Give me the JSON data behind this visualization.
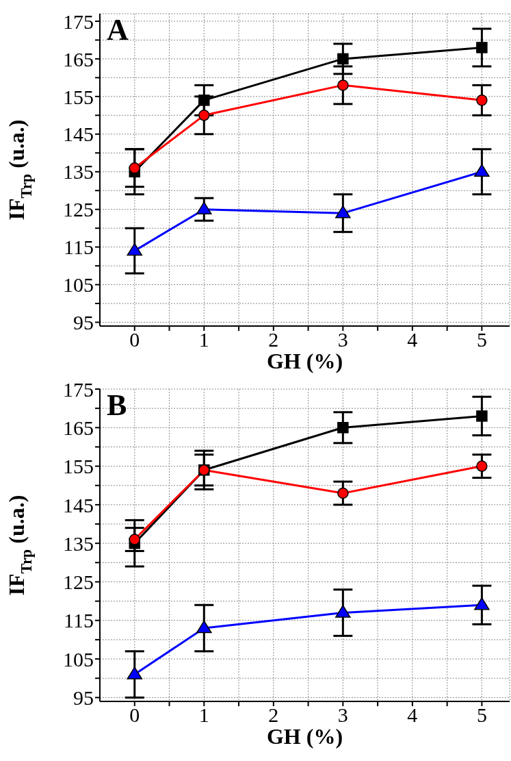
{
  "chart_data": [
    {
      "type": "line",
      "annotations": [
        "A"
      ],
      "xlabel": "GH (%)",
      "ylabel": "IF$_{Trp}$ (u.a.)",
      "x": [
        0,
        1,
        3,
        5
      ],
      "xlim": [
        -0.5,
        5.4
      ],
      "xticks": [
        0,
        {
          "value": 0.5,
          "label": null
        },
        1,
        {
          "value": 1.5,
          "label": null
        },
        2,
        {
          "value": 2.5,
          "label": null
        },
        3,
        {
          "value": 3.5,
          "label": null
        },
        4,
        {
          "value": 4.5,
          "label": null
        },
        5
      ],
      "ylim": [
        94,
        177
      ],
      "yticks": [
        95,
        {
          "value": 100,
          "label": null
        },
        105,
        {
          "value": 110,
          "label": null
        },
        115,
        {
          "value": 120,
          "label": null
        },
        125,
        {
          "value": 130,
          "label": null
        },
        135,
        {
          "value": 140,
          "label": null
        },
        145,
        {
          "value": 150,
          "label": null
        },
        155,
        {
          "value": 160,
          "label": null
        },
        165,
        {
          "value": 170,
          "label": null
        },
        175
      ],
      "grid": true,
      "line_style": "solid",
      "series": [
        {
          "color": "#000000",
          "marker": "square",
          "values": [
            135,
            154,
            165,
            168
          ],
          "errors": [
            6,
            4,
            4,
            5
          ]
        },
        {
          "color": "#ff0000",
          "marker": "circle",
          "values": [
            136,
            150,
            158,
            154
          ],
          "errors": [
            5,
            5,
            5,
            4
          ]
        },
        {
          "color": "#0000ff",
          "marker": "triangle",
          "values": [
            114,
            125,
            124,
            135
          ],
          "errors": [
            6,
            3,
            5,
            6
          ]
        }
      ]
    },
    {
      "type": "line",
      "annotations": [
        "B"
      ],
      "xlabel": "GH (%)",
      "ylabel": "IF$_{Trp}$ (u.a.)",
      "x": [
        0,
        1,
        3,
        5
      ],
      "xlim": [
        -0.5,
        5.4
      ],
      "xticks": [
        0,
        {
          "value": 0.5,
          "label": null
        },
        1,
        {
          "value": 1.5,
          "label": null
        },
        2,
        {
          "value": 2.5,
          "label": null
        },
        3,
        {
          "value": 3.5,
          "label": null
        },
        4,
        {
          "value": 4.5,
          "label": null
        },
        5
      ],
      "ylim": [
        94,
        175
      ],
      "yticks": [
        95,
        {
          "value": 100,
          "label": null
        },
        105,
        {
          "value": 110,
          "label": null
        },
        115,
        {
          "value": 120,
          "label": null
        },
        125,
        {
          "value": 130,
          "label": null
        },
        135,
        {
          "value": 140,
          "label": null
        },
        145,
        {
          "value": 150,
          "label": null
        },
        155,
        {
          "value": 160,
          "label": null
        },
        165,
        {
          "value": 170,
          "label": null
        },
        175
      ],
      "grid": true,
      "line_style": "solid",
      "series": [
        {
          "color": "#000000",
          "marker": "square",
          "values": [
            135,
            154,
            165,
            168
          ],
          "errors": [
            6,
            5,
            4,
            5
          ]
        },
        {
          "color": "#ff0000",
          "marker": "circle",
          "values": [
            136,
            154,
            148,
            155
          ],
          "errors": [
            3,
            4,
            3,
            3
          ]
        },
        {
          "color": "#0000ff",
          "marker": "triangle",
          "values": [
            101,
            113,
            117,
            119
          ],
          "errors": [
            6,
            6,
            6,
            5
          ]
        }
      ]
    }
  ]
}
